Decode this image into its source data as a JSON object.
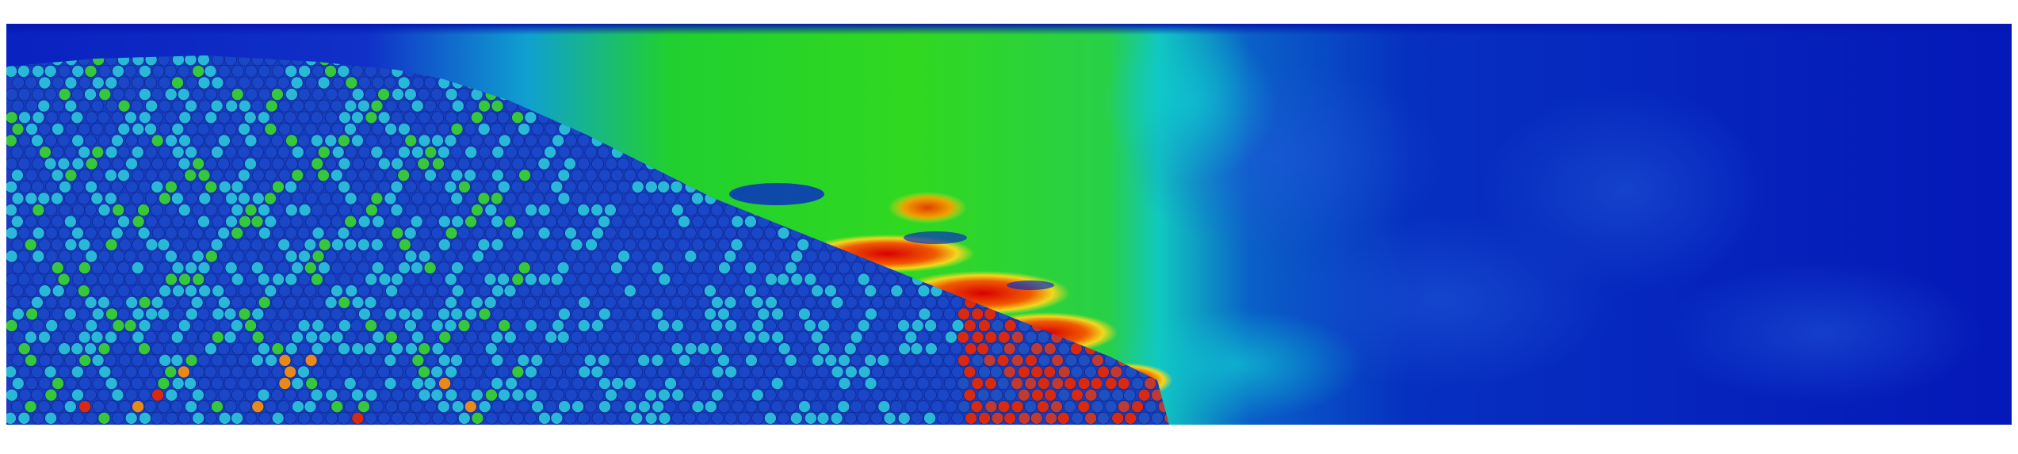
{
  "figure": {
    "description_colormap": "jet",
    "colors": {
      "background": "#ffffff",
      "fluid_low": "#0512b3",
      "fluid_mid_cyan": "#05c8c8",
      "fluid_green": "#1ad21a",
      "fluid_yellow": "#f0e020",
      "fluid_red": "#d40000",
      "particle_low": "#1a47c8",
      "particle_cyan": "#2ab8d8",
      "particle_green": "#35c83a",
      "particle_orange": "#e88a1a",
      "particle_red": "#d82a10"
    }
  }
}
